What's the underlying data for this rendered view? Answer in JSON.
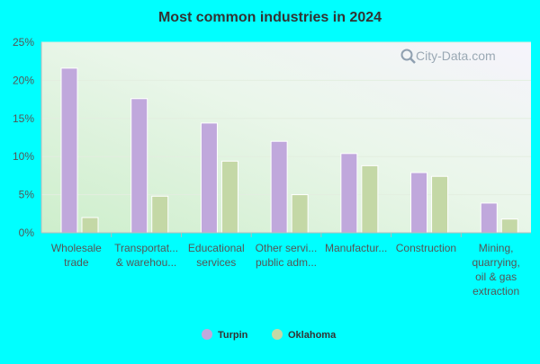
{
  "chart_data": {
    "type": "bar",
    "title": "Most common industries in 2024",
    "watermark": "City-Data.com",
    "categories": [
      [
        "Wholesale",
        "trade"
      ],
      [
        "Transportat...",
        "& warehou..."
      ],
      [
        "Educational",
        "services"
      ],
      [
        "Other servi...",
        "public adm..."
      ],
      [
        "Manufactur..."
      ],
      [
        "Construction"
      ],
      [
        "Mining,",
        "quarrying,",
        "oil & gas",
        "extraction"
      ]
    ],
    "series": [
      {
        "name": "Turpin",
        "color": "#c0a8dc",
        "values": [
          21.6,
          17.6,
          14.4,
          12.0,
          10.4,
          7.9,
          3.9
        ]
      },
      {
        "name": "Oklahoma",
        "color": "#c4d8a6",
        "values": [
          2.0,
          4.8,
          9.4,
          5.0,
          8.8,
          7.4,
          1.8
        ]
      }
    ],
    "ylim": [
      0,
      25
    ],
    "yticks": [
      0,
      5,
      10,
      15,
      20,
      25
    ],
    "ytick_labels": [
      "0%",
      "5%",
      "10%",
      "15%",
      "20%",
      "25%"
    ],
    "xlabel": "",
    "ylabel": "",
    "grid": true,
    "legend_position": "bottom-center"
  }
}
